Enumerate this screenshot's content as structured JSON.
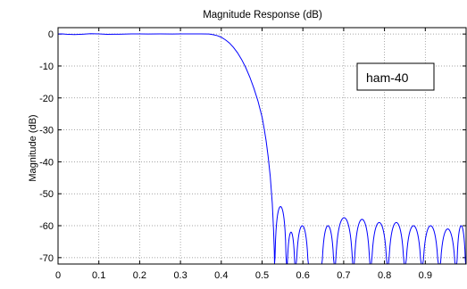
{
  "chart_data": {
    "type": "line",
    "title": "Magnitude Response (dB)",
    "xlabel": "",
    "ylabel": "Magnitude (dB)",
    "xlim": [
      0,
      1
    ],
    "ylim": [
      -72,
      2
    ],
    "xticks": [
      0,
      0.1,
      0.2,
      0.3,
      0.4,
      0.5,
      0.6,
      0.7,
      0.8,
      0.9
    ],
    "xtick_labels": [
      "0",
      "0.1",
      "0.2",
      "0.3",
      "0.4",
      "0.5",
      "0.6",
      "0.7",
      "0.8",
      "0.9"
    ],
    "yticks": [
      0,
      -10,
      -20,
      -30,
      -40,
      -50,
      -60,
      -70
    ],
    "ytick_labels": [
      "0",
      "-10",
      "-20",
      "-30",
      "-40",
      "-50",
      "-60",
      "-70"
    ],
    "grid": true,
    "legend_position": "top-right",
    "series": [
      {
        "name": "ham-40",
        "color": "#0000ff",
        "x": [
          0,
          0.01,
          0.02,
          0.04,
          0.06,
          0.08,
          0.1,
          0.12,
          0.15,
          0.18,
          0.2,
          0.22,
          0.25,
          0.28,
          0.3,
          0.32,
          0.35,
          0.37,
          0.38,
          0.39,
          0.4,
          0.41,
          0.42,
          0.43,
          0.44,
          0.45,
          0.46,
          0.47,
          0.48,
          0.49,
          0.5,
          0.505,
          0.51,
          0.515,
          0.52,
          0.525,
          0.528,
          0.53,
          0.5305
        ],
        "y": [
          0,
          0.05,
          -0.05,
          -0.15,
          -0.05,
          0.1,
          0.05,
          -0.1,
          -0.05,
          0.05,
          0.05,
          0.02,
          0.04,
          0.02,
          0.05,
          0.04,
          0.03,
          0.0,
          -0.2,
          -0.5,
          -1.0,
          -1.8,
          -2.8,
          -4.2,
          -5.9,
          -8.0,
          -10.5,
          -13.5,
          -17.0,
          -21.0,
          -26.0,
          -29.5,
          -33.5,
          -38.5,
          -44.5,
          -53.0,
          -61.0,
          -68.0,
          -72.0
        ]
      }
    ],
    "stopband_lobes": [
      {
        "start": 0.5305,
        "end": 0.56,
        "peak_x": 0.545,
        "peak_y": -54.0
      },
      {
        "start": 0.56,
        "end": 0.582,
        "peak_x": 0.573,
        "peak_y": -62.0
      },
      {
        "start": 0.582,
        "end": 0.615,
        "peak_x": 0.598,
        "peak_y": -60.0
      },
      {
        "start": 0.645,
        "end": 0.678,
        "peak_x": 0.662,
        "peak_y": -60.0
      },
      {
        "start": 0.678,
        "end": 0.724,
        "peak_x": 0.7,
        "peak_y": -57.5
      },
      {
        "start": 0.724,
        "end": 0.766,
        "peak_x": 0.745,
        "peak_y": -58.0
      },
      {
        "start": 0.766,
        "end": 0.808,
        "peak_x": 0.787,
        "peak_y": -59.0
      },
      {
        "start": 0.808,
        "end": 0.85,
        "peak_x": 0.829,
        "peak_y": -59.0
      },
      {
        "start": 0.85,
        "end": 0.892,
        "peak_x": 0.871,
        "peak_y": -60.0
      },
      {
        "start": 0.892,
        "end": 0.934,
        "peak_x": 0.913,
        "peak_y": -60.0
      },
      {
        "start": 0.934,
        "end": 0.976,
        "peak_x": 0.955,
        "peak_y": -61.0
      },
      {
        "start": 0.976,
        "end": 1.0,
        "peak_x": 0.992,
        "peak_y": -60.0
      }
    ]
  }
}
